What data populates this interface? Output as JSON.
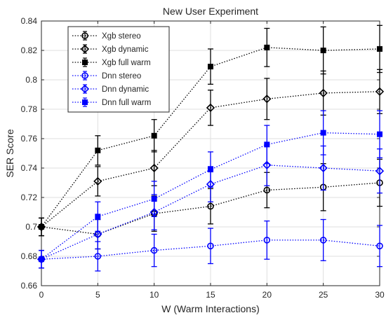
{
  "chart_data": {
    "type": "line",
    "title": "New User Experiment",
    "xlabel": "W (Warm Interactions)",
    "ylabel": "SER Score",
    "xlim": [
      0,
      30
    ],
    "ylim": [
      0.66,
      0.84
    ],
    "xticks": [
      "0",
      "5",
      "10",
      "15",
      "20",
      "25",
      "30"
    ],
    "yticks": [
      "0.66",
      "0.68",
      "0.7",
      "0.72",
      "0.74",
      "0.76",
      "0.78",
      "0.8",
      "0.82",
      "0.84"
    ],
    "grid": true,
    "legend_position": "top-left",
    "x": [
      0,
      5,
      10,
      15,
      20,
      25,
      30
    ],
    "series": [
      {
        "name": "Xgb stereo",
        "color": "#000000",
        "marker": "circle",
        "line": "dotted",
        "values": [
          0.7,
          0.695,
          0.709,
          0.714,
          0.725,
          0.727,
          0.73
        ],
        "errors": [
          0.006,
          0.01,
          0.012,
          0.012,
          0.012,
          0.016,
          0.016
        ]
      },
      {
        "name": "Xgb dynamic",
        "color": "#000000",
        "marker": "diamond",
        "line": "dotted",
        "values": [
          0.7,
          0.731,
          0.74,
          0.781,
          0.787,
          0.791,
          0.792
        ],
        "errors": [
          0.006,
          0.01,
          0.012,
          0.012,
          0.014,
          0.015,
          0.015
        ]
      },
      {
        "name": "Xgb full warm",
        "color": "#000000",
        "marker": "square",
        "line": "dotted",
        "values": [
          0.7,
          0.752,
          0.762,
          0.809,
          0.822,
          0.82,
          0.821
        ],
        "errors": [
          0.006,
          0.01,
          0.011,
          0.012,
          0.013,
          0.016,
          0.016
        ]
      },
      {
        "name": "Dnn stereo",
        "color": "#0000ff",
        "marker": "circle",
        "line": "dotted",
        "values": [
          0.678,
          0.68,
          0.684,
          0.687,
          0.691,
          0.691,
          0.687
        ],
        "errors": [
          0.006,
          0.01,
          0.011,
          0.012,
          0.013,
          0.014,
          0.014
        ]
      },
      {
        "name": "Dnn dynamic",
        "color": "#0000ff",
        "marker": "diamond",
        "line": "dotted",
        "values": [
          0.678,
          0.695,
          0.71,
          0.729,
          0.742,
          0.74,
          0.738
        ],
        "errors": [
          0.006,
          0.01,
          0.012,
          0.012,
          0.014,
          0.015,
          0.015
        ]
      },
      {
        "name": "Dnn full warm",
        "color": "#0000ff",
        "marker": "square",
        "line": "dotted",
        "values": [
          0.678,
          0.707,
          0.719,
          0.739,
          0.756,
          0.764,
          0.763
        ],
        "errors": [
          0.006,
          0.01,
          0.012,
          0.012,
          0.013,
          0.015,
          0.016
        ]
      }
    ]
  }
}
